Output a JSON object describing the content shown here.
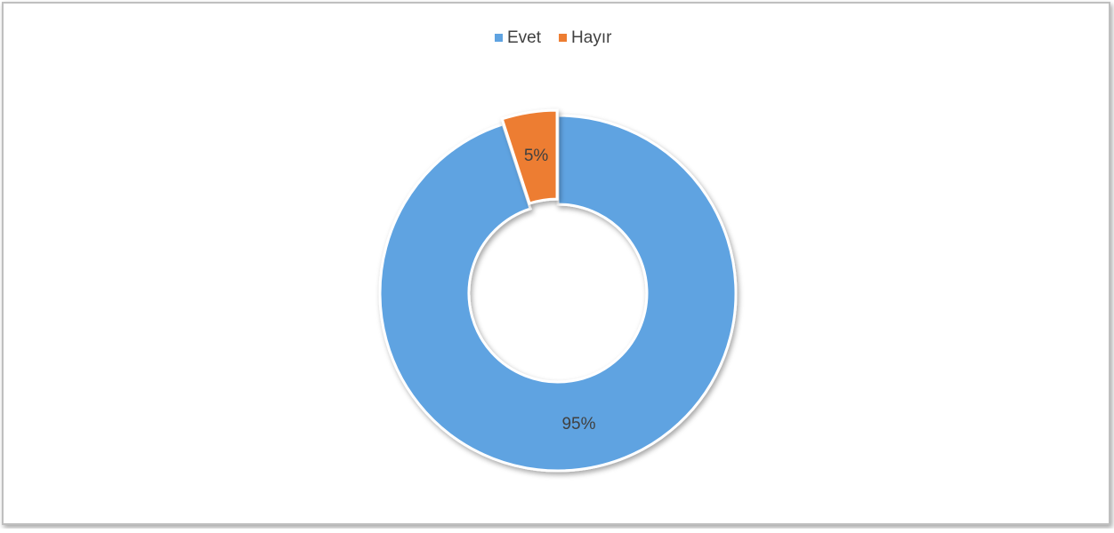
{
  "chart_data": {
    "type": "donut",
    "categories": [
      "Evet",
      "Hayır"
    ],
    "values": [
      95,
      5
    ],
    "value_labels": [
      "95%",
      "5%"
    ],
    "colors": [
      "#5fa3e1",
      "#ed7d31"
    ],
    "legend": "top"
  }
}
